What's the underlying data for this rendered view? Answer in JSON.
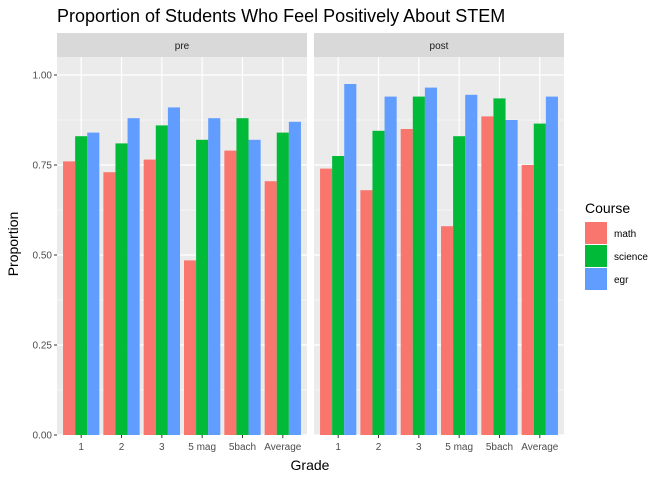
{
  "chart_data": {
    "type": "bar",
    "title": "Proportion of Students Who Feel Positively About STEM",
    "xlabel": "Grade",
    "ylabel": "Proportion",
    "ylim": [
      0,
      1.05
    ],
    "yticks": [
      "0.00",
      "0.25",
      "0.50",
      "0.75",
      "1.00"
    ],
    "ytick_values": [
      0,
      0.25,
      0.5,
      0.75,
      1.0
    ],
    "categories": [
      "1",
      "2",
      "3",
      "5 mag",
      "5bach",
      "Average"
    ],
    "grid": true,
    "legend_position": "right",
    "legend_title": "Course",
    "series_names": [
      "math",
      "science",
      "egr"
    ],
    "colors": {
      "math": "#F8766D",
      "science": "#00BA38",
      "egr": "#619CFF"
    },
    "facets": [
      {
        "label": "pre",
        "series": [
          {
            "name": "math",
            "values": [
              0.76,
              0.73,
              0.765,
              0.485,
              0.79,
              0.705
            ]
          },
          {
            "name": "science",
            "values": [
              0.83,
              0.81,
              0.86,
              0.82,
              0.88,
              0.84
            ]
          },
          {
            "name": "egr",
            "values": [
              0.84,
              0.88,
              0.91,
              0.88,
              0.82,
              0.87
            ]
          }
        ]
      },
      {
        "label": "post",
        "series": [
          {
            "name": "math",
            "values": [
              0.74,
              0.68,
              0.85,
              0.58,
              0.885,
              0.75
            ]
          },
          {
            "name": "science",
            "values": [
              0.775,
              0.845,
              0.94,
              0.83,
              0.935,
              0.865
            ]
          },
          {
            "name": "egr",
            "values": [
              0.975,
              0.94,
              0.965,
              0.945,
              0.875,
              0.94
            ]
          }
        ]
      }
    ]
  }
}
